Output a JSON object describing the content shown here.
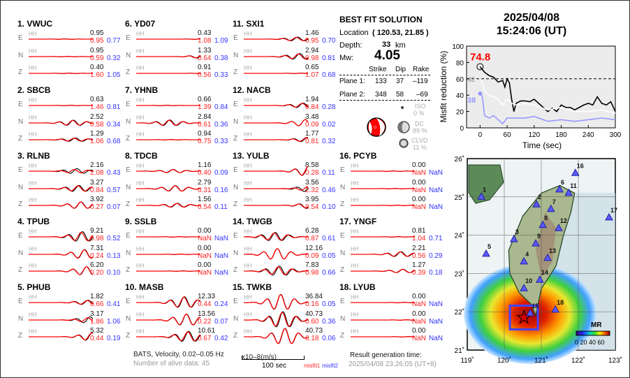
{
  "header": {
    "date": "2025/04/08",
    "time": "15:24:06  (UT)"
  },
  "component_label": "HH",
  "stations": [
    {
      "num": "1.",
      "name": "VWUC",
      "col": 0,
      "row": 0,
      "comps": [
        {
          "c": "E",
          "amp": "0.95",
          "m1": "0.95",
          "m2": "0.77"
        },
        {
          "c": "N",
          "amp": "0.95",
          "m1": "0.59",
          "m2": "0.32"
        },
        {
          "c": "Z",
          "amp": "0.40",
          "m1": "1.60",
          "m2": "1.05"
        }
      ]
    },
    {
      "num": "2.",
      "name": "SBCB",
      "col": 0,
      "row": 1,
      "comps": [
        {
          "c": "E",
          "amp": "0.63",
          "m1": "1.46",
          "m2": "0.81"
        },
        {
          "c": "N",
          "amp": "2.52",
          "m1": "0.58",
          "m2": "0.34"
        },
        {
          "c": "Z",
          "amp": "1.29",
          "m1": "1.06",
          "m2": "0.68"
        }
      ]
    },
    {
      "num": "3.",
      "name": "RLNB",
      "col": 0,
      "row": 2,
      "comps": [
        {
          "c": "E",
          "amp": "2.16",
          "m1": "2.08",
          "m2": "0.43"
        },
        {
          "c": "N",
          "amp": "3.27",
          "m1": "0.84",
          "m2": "0.57"
        },
        {
          "c": "Z",
          "amp": "3.92",
          "m1": "0.27",
          "m2": "0.07"
        }
      ]
    },
    {
      "num": "4.",
      "name": "TPUB",
      "col": 0,
      "row": 3,
      "comps": [
        {
          "c": "E",
          "amp": "9.21",
          "m1": "0.98",
          "m2": "0.52"
        },
        {
          "c": "N",
          "amp": "7.31",
          "m1": "0.24",
          "m2": "0.13"
        },
        {
          "c": "Z",
          "amp": "6.20",
          "m1": "0.20",
          "m2": "0.10"
        }
      ]
    },
    {
      "num": "5.",
      "name": "PHUB",
      "col": 0,
      "row": 4,
      "comps": [
        {
          "c": "E",
          "amp": "1.82",
          "m1": "0.66",
          "m2": "0.41"
        },
        {
          "c": "N",
          "amp": "3.17",
          "m1": "1.86",
          "m2": "1.06"
        },
        {
          "c": "Z",
          "amp": "5.32",
          "m1": "0.44",
          "m2": "0.19"
        }
      ]
    },
    {
      "num": "6.",
      "name": "YD07",
      "col": 1,
      "row": 0,
      "comps": [
        {
          "c": "E",
          "amp": "0.43",
          "m1": "1.08",
          "m2": "1.09"
        },
        {
          "c": "N",
          "amp": "1.33",
          "m1": "0.64",
          "m2": "0.38"
        },
        {
          "c": "Z",
          "amp": "0.91",
          "m1": "0.56",
          "m2": "0.33"
        }
      ]
    },
    {
      "num": "7.",
      "name": "YHNB",
      "col": 1,
      "row": 1,
      "comps": [
        {
          "c": "E",
          "amp": "0.66",
          "m1": "1.39",
          "m2": "0.84"
        },
        {
          "c": "N",
          "amp": "2.84",
          "m1": "0.61",
          "m2": "0.36"
        },
        {
          "c": "Z",
          "amp": "0.94",
          "m1": "0.75",
          "m2": "0.33"
        }
      ]
    },
    {
      "num": "8.",
      "name": "TDCB",
      "col": 1,
      "row": 2,
      "comps": [
        {
          "c": "E",
          "amp": "1.16",
          "m1": "0.40",
          "m2": "0.09"
        },
        {
          "c": "N",
          "amp": "2.79",
          "m1": "0.31",
          "m2": "0.16"
        },
        {
          "c": "Z",
          "amp": "1.56",
          "m1": "0.54",
          "m2": "0.11"
        }
      ]
    },
    {
      "num": "9.",
      "name": "SSLB",
      "col": 1,
      "row": 3,
      "comps": [
        {
          "c": "E",
          "amp": "0.00",
          "m1": "NaN",
          "m2": "NaN"
        },
        {
          "c": "N",
          "amp": "0.00",
          "m1": "NaN",
          "m2": "NaN"
        },
        {
          "c": "Z",
          "amp": "0.00",
          "m1": "NaN",
          "m2": "NaN"
        }
      ]
    },
    {
      "num": "10.",
      "name": "MASB",
      "col": 1,
      "row": 4,
      "comps": [
        {
          "c": "E",
          "amp": "12.33",
          "m1": "0.44",
          "m2": "0.24"
        },
        {
          "c": "N",
          "amp": "13.56",
          "m1": "0.22",
          "m2": "0.07"
        },
        {
          "c": "Z",
          "amp": "10.61",
          "m1": "0.67",
          "m2": "0.42"
        }
      ]
    },
    {
      "num": "11.",
      "name": "SXI1",
      "col": 2,
      "row": 0,
      "comps": [
        {
          "c": "E",
          "amp": "1.46",
          "m1": "0.95",
          "m2": "0.70"
        },
        {
          "c": "N",
          "amp": "2.94",
          "m1": "0.98",
          "m2": "0.81"
        },
        {
          "c": "Z",
          "amp": "0.65",
          "m1": "1.07",
          "m2": "0.68"
        }
      ]
    },
    {
      "num": "12.",
      "name": "NACB",
      "col": 2,
      "row": 1,
      "comps": [
        {
          "c": "E",
          "amp": "1.94",
          "m1": "0.84",
          "m2": "0.28"
        },
        {
          "c": "N",
          "amp": "3.48",
          "m1": "0.09",
          "m2": "0.02"
        },
        {
          "c": "Z",
          "amp": "1.77",
          "m1": "0.81",
          "m2": "0.32"
        }
      ]
    },
    {
      "num": "13.",
      "name": "YULB",
      "col": 2,
      "row": 2,
      "comps": [
        {
          "c": "E",
          "amp": "8.58",
          "m1": "0.28",
          "m2": "0.11"
        },
        {
          "c": "N",
          "amp": "3.56",
          "m1": "2.32",
          "m2": "0.46"
        },
        {
          "c": "Z",
          "amp": "3.95",
          "m1": "0.54",
          "m2": "0.10"
        }
      ]
    },
    {
      "num": "14.",
      "name": "TWGB",
      "col": 2,
      "row": 3,
      "comps": [
        {
          "c": "E",
          "amp": "6.28",
          "m1": "0.87",
          "m2": "0.61"
        },
        {
          "c": "N",
          "amp": "12.16",
          "m1": "0.09",
          "m2": "0.05"
        },
        {
          "c": "Z",
          "amp": "7.83",
          "m1": "0.98",
          "m2": "0.66"
        }
      ]
    },
    {
      "num": "15.",
      "name": "TWKB",
      "col": 2,
      "row": 4,
      "comps": [
        {
          "c": "E",
          "amp": "36.84",
          "m1": "0.16",
          "m2": "0.05"
        },
        {
          "c": "N",
          "amp": "40.73",
          "m1": "0.60",
          "m2": "0.36"
        },
        {
          "c": "Z",
          "amp": "40.73",
          "m1": "0.18",
          "m2": "0.06"
        }
      ]
    },
    {
      "num": "16.",
      "name": "PCYB",
      "col": 3,
      "row": 2,
      "comps": [
        {
          "c": "E",
          "amp": "0.00",
          "m1": "NaN",
          "m2": "NaN"
        },
        {
          "c": "N",
          "amp": "0.00",
          "m1": "NaN",
          "m2": "NaN"
        },
        {
          "c": "Z",
          "amp": "0.00",
          "m1": "NaN",
          "m2": "NaN"
        }
      ]
    },
    {
      "num": "17.",
      "name": "YNGF",
      "col": 3,
      "row": 3,
      "comps": [
        {
          "c": "E",
          "amp": "0.81",
          "m1": "1.04",
          "m2": "0.71"
        },
        {
          "c": "N",
          "amp": "2.21",
          "m1": "0.56",
          "m2": "0.29"
        },
        {
          "c": "Z",
          "amp": "1.27",
          "m1": "0.39",
          "m2": "0.18"
        }
      ]
    },
    {
      "num": "18.",
      "name": "LYUB",
      "col": 3,
      "row": 4,
      "comps": [
        {
          "c": "E",
          "amp": "0.00",
          "m1": "NaN",
          "m2": "NaN"
        },
        {
          "c": "N",
          "amp": "0.00",
          "m1": "NaN",
          "m2": "NaN"
        },
        {
          "c": "Z",
          "amp": "0.00",
          "m1": "NaN",
          "m2": "NaN"
        }
      ]
    }
  ],
  "footer": {
    "info": "BATS, Velocity, 0.02–0.05 Hz",
    "alive": "Number of alive data: 45",
    "scale_label": "100 sec",
    "unit": "x10–8(m/s)",
    "misfit1": "misfit1",
    "misfit2": "misfit2",
    "gen_label": "Result generation time:",
    "gen_time": "2025/04/08 23:26:05 (UT+8)"
  },
  "solution": {
    "title": "BEST FIT SOLUTION",
    "location_label": "Location",
    "location": "( 120.53,  21.85 )",
    "depth_label": "Depth:",
    "depth": "33",
    "depth_unit": "km",
    "mw_label": "Mw:",
    "mw": "4.05",
    "headers": [
      "Strike",
      "Dip",
      "Rake"
    ],
    "planes": [
      {
        "label": "Plane 1:",
        "strike": "133",
        "dip": "37",
        "rake": "–119"
      },
      {
        "label": "Plane 2:",
        "strike": "348",
        "dip": "58",
        "rake": "–69"
      }
    ],
    "iso_label": "ISO",
    "iso": "0  %",
    "dc_label": "DC",
    "dc": "89 %",
    "clvd_label": "CLVD",
    "clvd": "11 %"
  },
  "colors": {
    "observed": "#000000",
    "synthetic": "#ff0000",
    "misfit1": "#ff2222",
    "misfit2": "#3333ff",
    "beachball": "#ff0000"
  },
  "chart_data": {
    "type": "line",
    "xlabel": "Time (sec)",
    "ylabel": "Misfit reduction (%)",
    "xlim": [
      -30,
      300
    ],
    "ylim": [
      0,
      100
    ],
    "xticks": [
      "0",
      "60",
      "120",
      "180",
      "240",
      "300"
    ],
    "yticks": [
      "0",
      "20",
      "40",
      "60",
      "80",
      "100"
    ],
    "reference_line": 60,
    "annotations": [
      {
        "text": "74.8",
        "color": "#ff0000"
      },
      {
        "text": "42",
        "color": "#aaaaaa"
      },
      {
        "text": "38",
        "color": "#9999ff"
      }
    ],
    "series": [
      {
        "color": "#000000",
        "x": [
          0,
          10,
          20,
          30,
          40,
          50,
          55,
          60,
          65,
          70,
          75,
          80,
          90,
          100,
          110,
          120,
          130,
          140,
          150,
          160,
          170,
          180,
          190,
          200,
          210,
          220,
          230,
          240,
          250,
          260,
          270,
          280,
          290,
          300
        ],
        "y": [
          74.8,
          68,
          64,
          62,
          56,
          58,
          50,
          60,
          55,
          35,
          20,
          30,
          33,
          33,
          32,
          35,
          30,
          25,
          20,
          24,
          20,
          28,
          25,
          25,
          22,
          25,
          28,
          30,
          28,
          38,
          30,
          28,
          32,
          20
        ]
      },
      {
        "color": "#ffffff",
        "x": [
          0,
          5,
          10,
          20,
          30,
          40,
          50,
          60,
          70,
          80,
          100,
          120,
          150,
          180,
          210,
          240,
          270,
          300
        ],
        "y": [
          60,
          55,
          45,
          40,
          38,
          35,
          28,
          35,
          30,
          28,
          30,
          28,
          22,
          25,
          20,
          20,
          22,
          18
        ]
      },
      {
        "color": "#9999ff",
        "x": [
          0,
          5,
          10,
          20,
          30,
          40,
          50,
          60,
          80,
          100,
          120,
          150,
          180,
          210,
          240,
          270,
          300
        ],
        "y": [
          42,
          38,
          15,
          12,
          15,
          10,
          5,
          12,
          12,
          12,
          14,
          8,
          10,
          8,
          10,
          12,
          10
        ]
      }
    ]
  },
  "map": {
    "lon_ticks": [
      "119˚",
      "120˚",
      "121˚",
      "122˚",
      "123˚"
    ],
    "lat_ticks": [
      "21˚",
      "22˚",
      "23˚",
      "24˚",
      "25˚",
      "26˚"
    ],
    "lon_range": [
      119,
      123
    ],
    "lat_range": [
      21,
      26
    ],
    "epicenter": {
      "lon": 120.53,
      "lat": 21.85
    },
    "colorbar_title": "MR",
    "colorbar_labels": "0 20 40 60",
    "stations": [
      {
        "id": "1",
        "lon": 119.38,
        "lat": 25.01
      },
      {
        "id": "2",
        "lon": 120.87,
        "lat": 24.81
      },
      {
        "id": "3",
        "lon": 120.26,
        "lat": 23.9
      },
      {
        "id": "4",
        "lon": 120.53,
        "lat": 23.32
      },
      {
        "id": "5",
        "lon": 119.51,
        "lat": 23.52
      },
      {
        "id": "6",
        "lon": 121.49,
        "lat": 25.2
      },
      {
        "id": "7",
        "lon": 121.26,
        "lat": 24.69
      },
      {
        "id": "8",
        "lon": 121.04,
        "lat": 24.27
      },
      {
        "id": "9",
        "lon": 120.85,
        "lat": 23.79
      },
      {
        "id": "10",
        "lon": 120.53,
        "lat": 22.62
      },
      {
        "id": "11",
        "lon": 121.74,
        "lat": 25.11
      },
      {
        "id": "12",
        "lon": 121.47,
        "lat": 24.19
      },
      {
        "id": "13",
        "lon": 121.17,
        "lat": 23.41
      },
      {
        "id": "14",
        "lon": 120.96,
        "lat": 22.84
      },
      {
        "id": "15",
        "lon": 120.7,
        "lat": 21.97
      },
      {
        "id": "16",
        "lon": 121.92,
        "lat": 25.63
      },
      {
        "id": "17",
        "lon": 122.83,
        "lat": 24.47
      },
      {
        "id": "18",
        "lon": 121.38,
        "lat": 22.06
      }
    ]
  }
}
